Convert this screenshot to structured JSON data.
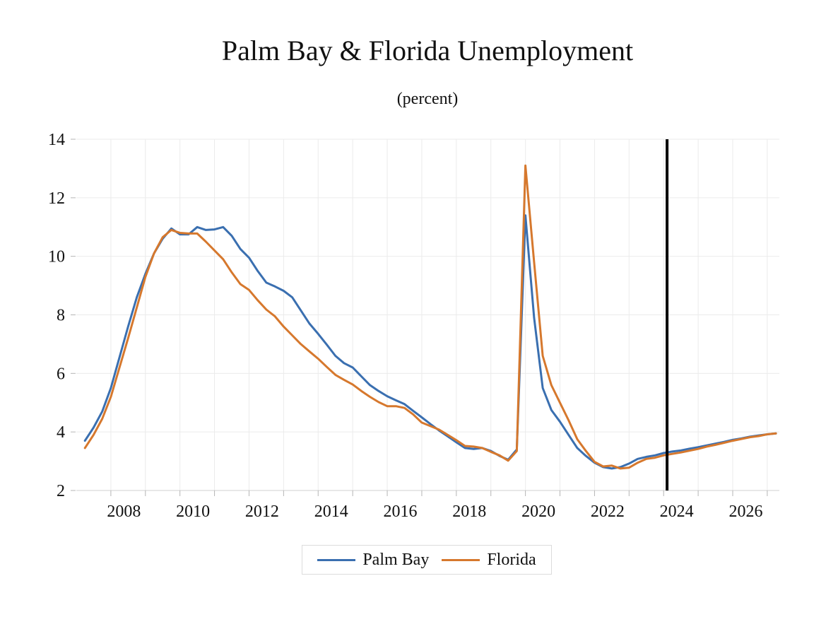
{
  "colors": {
    "palm_bay": "#3a6fb0",
    "florida": "#d6782d",
    "marker": "#000000",
    "grid": "#ebebeb"
  },
  "chart_data": {
    "type": "line",
    "title": "Palm Bay & Florida Unemployment",
    "subtitle": "(percent)",
    "xlabel": "",
    "ylabel": "",
    "xlim": [
      2007.0,
      2027.35
    ],
    "ylim": [
      2,
      14
    ],
    "y_ticks": [
      2,
      4,
      6,
      8,
      10,
      12,
      14
    ],
    "x_tick_labels": [
      "2008",
      "2010",
      "2012",
      "2014",
      "2016",
      "2018",
      "2020",
      "2022",
      "2024",
      "2026"
    ],
    "x_tick_values": [
      2008.5,
      2010.5,
      2012.5,
      2014.5,
      2016.5,
      2018.5,
      2020.5,
      2022.5,
      2024.5,
      2026.5
    ],
    "vertical_marker": 2024.1,
    "legend": {
      "position": "bottom-center"
    },
    "series": [
      {
        "name": "Palm Bay",
        "x": [
          2007.25,
          2007.5,
          2007.75,
          2008.0,
          2008.25,
          2008.5,
          2008.75,
          2009.0,
          2009.25,
          2009.5,
          2009.75,
          2010.0,
          2010.25,
          2010.5,
          2010.75,
          2011.0,
          2011.25,
          2011.5,
          2011.75,
          2012.0,
          2012.25,
          2012.5,
          2012.75,
          2013.0,
          2013.25,
          2013.5,
          2013.75,
          2014.0,
          2014.25,
          2014.5,
          2014.75,
          2015.0,
          2015.25,
          2015.5,
          2015.75,
          2016.0,
          2016.25,
          2016.5,
          2016.75,
          2017.0,
          2017.25,
          2017.5,
          2017.75,
          2018.0,
          2018.25,
          2018.5,
          2018.75,
          2019.0,
          2019.25,
          2019.5,
          2019.75,
          2020.0,
          2020.25,
          2020.5,
          2020.75,
          2021.0,
          2021.25,
          2021.5,
          2021.75,
          2022.0,
          2022.25,
          2022.5,
          2022.75,
          2023.0,
          2023.25,
          2023.5,
          2023.75,
          2024.0,
          2024.25,
          2024.5,
          2024.75,
          2025.0,
          2025.25,
          2025.5,
          2025.75,
          2026.0,
          2026.25,
          2026.5,
          2026.75,
          2027.0,
          2027.25
        ],
        "values": [
          3.7,
          4.15,
          4.7,
          5.5,
          6.55,
          7.6,
          8.6,
          9.4,
          10.1,
          10.6,
          10.95,
          10.75,
          10.75,
          11.0,
          10.9,
          10.92,
          11.0,
          10.7,
          10.25,
          9.95,
          9.5,
          9.1,
          8.97,
          8.82,
          8.6,
          8.15,
          7.7,
          7.35,
          6.98,
          6.6,
          6.35,
          6.2,
          5.9,
          5.6,
          5.4,
          5.22,
          5.08,
          4.95,
          4.72,
          4.5,
          4.27,
          4.05,
          3.85,
          3.65,
          3.45,
          3.42,
          3.45,
          3.35,
          3.18,
          3.05,
          3.4,
          11.4,
          7.9,
          5.5,
          4.75,
          4.35,
          3.9,
          3.45,
          3.18,
          2.95,
          2.8,
          2.75,
          2.8,
          2.92,
          3.08,
          3.15,
          3.2,
          3.28,
          3.33,
          3.37,
          3.43,
          3.48,
          3.54,
          3.6,
          3.66,
          3.73,
          3.78,
          3.84,
          3.88,
          3.92,
          3.95
        ]
      },
      {
        "name": "Florida",
        "x": [
          2007.25,
          2007.5,
          2007.75,
          2008.0,
          2008.25,
          2008.5,
          2008.75,
          2009.0,
          2009.25,
          2009.5,
          2009.75,
          2010.0,
          2010.25,
          2010.5,
          2010.75,
          2011.0,
          2011.25,
          2011.5,
          2011.75,
          2012.0,
          2012.25,
          2012.5,
          2012.75,
          2013.0,
          2013.25,
          2013.5,
          2013.75,
          2014.0,
          2014.25,
          2014.5,
          2014.75,
          2015.0,
          2015.25,
          2015.5,
          2015.75,
          2016.0,
          2016.25,
          2016.5,
          2016.75,
          2017.0,
          2017.25,
          2017.5,
          2017.75,
          2018.0,
          2018.25,
          2018.5,
          2018.75,
          2019.0,
          2019.25,
          2019.5,
          2019.75,
          2020.0,
          2020.25,
          2020.5,
          2020.75,
          2021.0,
          2021.25,
          2021.5,
          2021.75,
          2022.0,
          2022.25,
          2022.5,
          2022.75,
          2023.0,
          2023.25,
          2023.5,
          2023.75,
          2024.0,
          2024.25,
          2024.5,
          2024.75,
          2025.0,
          2025.25,
          2025.5,
          2025.75,
          2026.0,
          2026.25,
          2026.5,
          2026.75,
          2027.0,
          2027.25
        ],
        "values": [
          3.45,
          3.9,
          4.45,
          5.2,
          6.2,
          7.2,
          8.25,
          9.3,
          10.1,
          10.65,
          10.9,
          10.8,
          10.78,
          10.78,
          10.5,
          10.2,
          9.9,
          9.45,
          9.05,
          8.85,
          8.5,
          8.18,
          7.95,
          7.6,
          7.3,
          7.0,
          6.75,
          6.5,
          6.22,
          5.95,
          5.78,
          5.62,
          5.4,
          5.2,
          5.02,
          4.88,
          4.88,
          4.82,
          4.6,
          4.32,
          4.2,
          4.08,
          3.9,
          3.72,
          3.52,
          3.5,
          3.45,
          3.32,
          3.2,
          3.02,
          3.35,
          13.1,
          9.8,
          6.6,
          5.6,
          5.0,
          4.4,
          3.75,
          3.35,
          2.98,
          2.82,
          2.85,
          2.75,
          2.78,
          2.95,
          3.08,
          3.12,
          3.2,
          3.25,
          3.3,
          3.36,
          3.42,
          3.5,
          3.56,
          3.63,
          3.7,
          3.76,
          3.82,
          3.86,
          3.92,
          3.95
        ]
      }
    ]
  }
}
